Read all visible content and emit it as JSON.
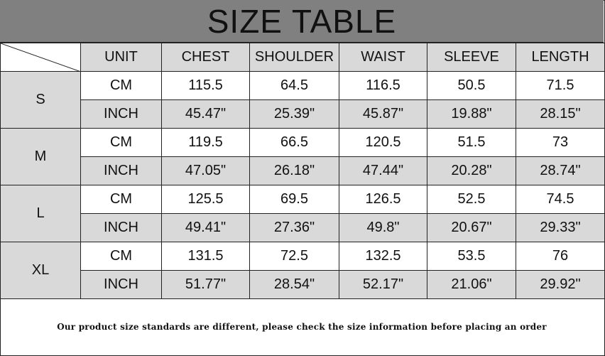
{
  "title": "SIZE TABLE",
  "headers": [
    "UNIT",
    "CHEST",
    "SHOULDER",
    "WAIST",
    "SLEEVE",
    "LENGTH"
  ],
  "sizes": [
    {
      "size": "S",
      "rows": [
        {
          "unit": "CM",
          "values": [
            "115.5",
            "64.5",
            "116.5",
            "50.5",
            "71.5"
          ]
        },
        {
          "unit": "INCH",
          "values": [
            "45.47\"",
            "25.39\"",
            "45.87\"",
            "19.88\"",
            "28.15\""
          ]
        }
      ]
    },
    {
      "size": "M",
      "rows": [
        {
          "unit": "CM",
          "values": [
            "119.5",
            "66.5",
            "120.5",
            "51.5",
            "73"
          ]
        },
        {
          "unit": "INCH",
          "values": [
            "47.05\"",
            "26.18\"",
            "47.44\"",
            "20.28\"",
            "28.74\""
          ]
        }
      ]
    },
    {
      "size": "L",
      "rows": [
        {
          "unit": "CM",
          "values": [
            "125.5",
            "69.5",
            "126.5",
            "52.5",
            "74.5"
          ]
        },
        {
          "unit": "INCH",
          "values": [
            "49.41\"",
            "27.36\"",
            "49.8\"",
            "20.67\"",
            "29.33\""
          ]
        }
      ]
    },
    {
      "size": "XL",
      "rows": [
        {
          "unit": "CM",
          "values": [
            "131.5",
            "72.5",
            "132.5",
            "53.5",
            "76"
          ]
        },
        {
          "unit": "INCH",
          "values": [
            "51.77\"",
            "28.54\"",
            "52.17\"",
            "21.06\"",
            "29.92\""
          ]
        }
      ]
    }
  ],
  "footer_note": "Our product size standards are different, please check the size information before placing an order",
  "colors": {
    "title_band": "#808080",
    "shaded_cell": "#d9d9d9",
    "border": "#222222"
  }
}
